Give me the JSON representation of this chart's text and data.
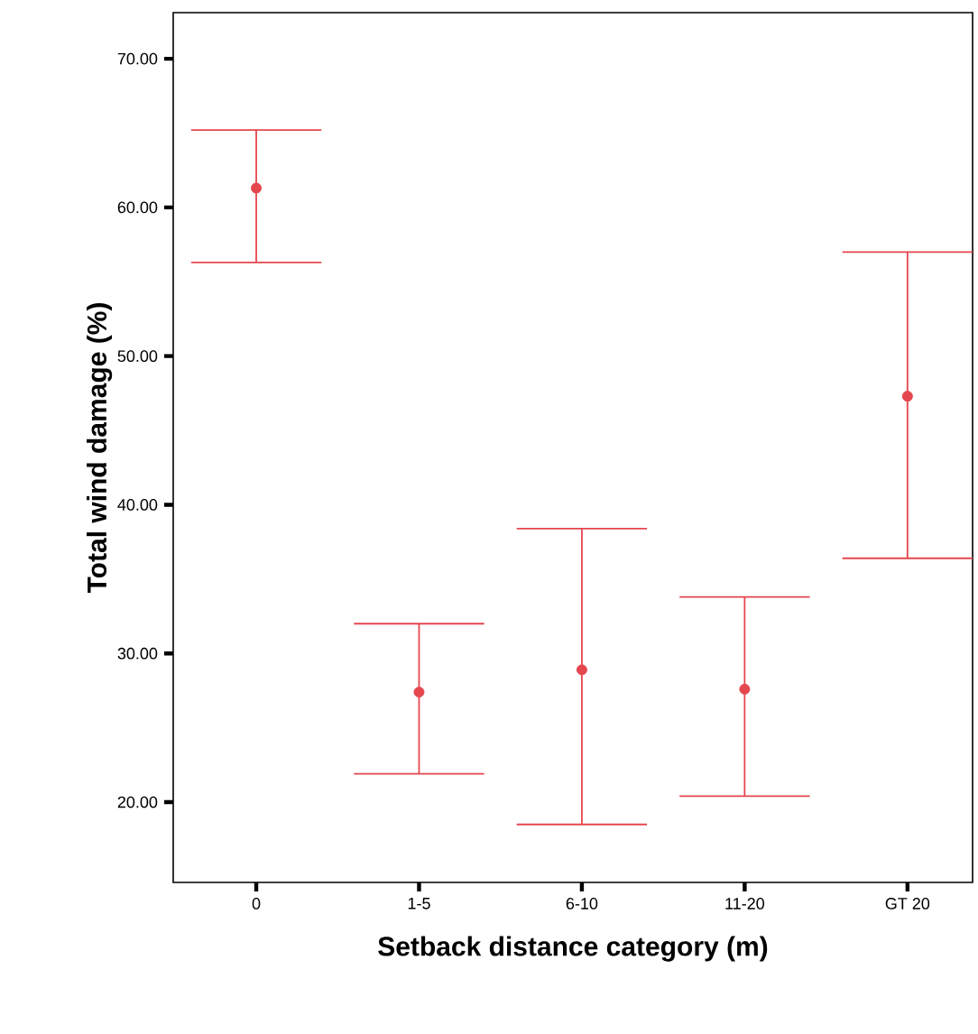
{
  "chart_data": {
    "type": "scatter",
    "xlabel": "Setback distance category (m)",
    "ylabel": "Total wind damage (%)",
    "categories": [
      "0",
      "1-5",
      "6-10",
      "11-20",
      "GT 20"
    ],
    "values": [
      61.3,
      27.4,
      28.9,
      27.6,
      47.3
    ],
    "errors": [
      [
        56.3,
        65.2
      ],
      [
        21.9,
        32.0
      ],
      [
        18.5,
        38.4
      ],
      [
        20.4,
        33.8
      ],
      [
        36.4,
        57.0
      ]
    ],
    "color": "#e5474f",
    "marker": "circle",
    "ylim": [
      14.6,
      73.1
    ],
    "yticks": [
      {
        "value": 20,
        "label": "20.00"
      },
      {
        "value": 30,
        "label": "30.00"
      },
      {
        "value": 40,
        "label": "40.00"
      },
      {
        "value": 50,
        "label": "50.00"
      },
      {
        "value": 60,
        "label": "60.00"
      },
      {
        "value": 70,
        "label": "70.00"
      }
    ]
  }
}
